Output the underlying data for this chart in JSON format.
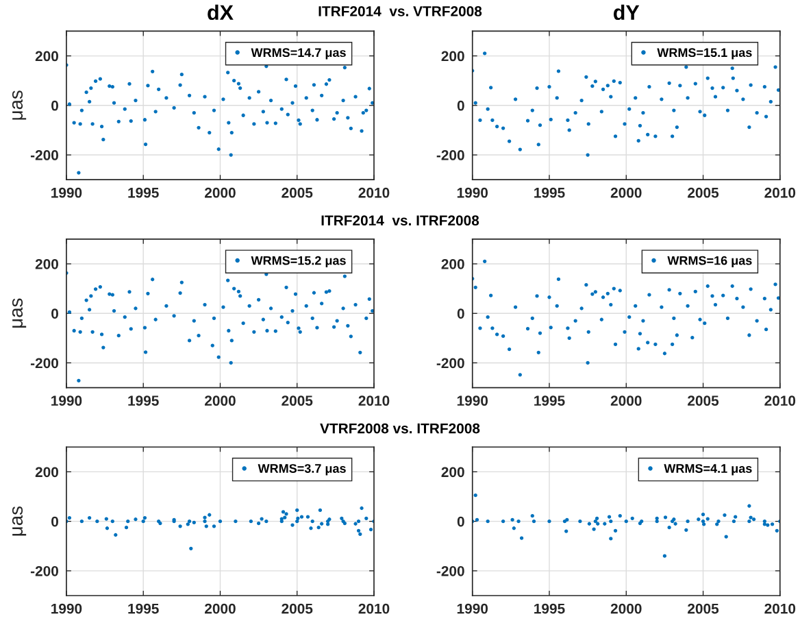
{
  "chart_data": [
    {
      "type": "scatter",
      "title": "dX",
      "ylabel": "μas",
      "annotations": [
        "ITRF2014  vs. VTRF2008"
      ],
      "xlim": [
        1990,
        2010
      ],
      "ylim": [
        -300,
        300
      ],
      "xticks": [
        1990,
        1995,
        2000,
        2005,
        2010
      ],
      "yticks": [
        -200,
        0,
        200
      ],
      "grid": true,
      "legend": "top right",
      "marker": "circle",
      "series": [
        {
          "name": "WRMS=14.7 μas",
          "color": "#0072bd",
          "x": [
            1990.0,
            1990.8,
            1992.2,
            1992.3,
            1992.4,
            1991.9,
            1991.3,
            1991.6,
            1990.5,
            1990.9,
            1991.7,
            1992.8,
            1993.0,
            1993.4,
            1994.1,
            1994.2,
            1995.1,
            1995.15,
            1995.3,
            1995.6,
            1996.0,
            1997.5,
            1997.4,
            1998.6,
            1999.3,
            1999.9,
            2000.5,
            2000.7,
            2000.75,
            2000.55,
            2000.9,
            2001.2,
            2001.3,
            2002.2,
            2002.5,
            2003.0,
            2003.05,
            2003.6,
            2004.3,
            2004.4,
            2004.9,
            2005.2,
            2005.1,
            2006.1,
            2006.3,
            2006.9,
            2007.1,
            2007.4,
            2008.1,
            2008.5,
            2009.2,
            2009.7,
            2009.3,
            2008.3,
            1990.2,
            1991.0,
            1991.5,
            1993.1,
            1993.8,
            1994.5,
            1995.8,
            1996.5,
            1997.0,
            1998.0,
            1998.3,
            1999.0,
            1999.6,
            2000.2,
            2001.5,
            2001.9,
            2002.8,
            2003.3,
            2004.0,
            2004.7,
            2005.6,
            2006.0,
            2006.6,
            2007.6,
            2008.0,
            2008.8,
            2009.5,
            2009.9
          ],
          "values": [
            163,
            -272,
            107,
            -85,
            -138,
            98,
            53,
            70,
            -70,
            -75,
            -75,
            78,
            75,
            -65,
            87,
            -63,
            -58,
            -157,
            80,
            137,
            65,
            125,
            82,
            -90,
            -110,
            -177,
            133,
            -200,
            -110,
            -70,
            100,
            88,
            70,
            -75,
            55,
            158,
            -70,
            -72,
            105,
            -37,
            78,
            -75,
            -60,
            83,
            -58,
            86,
            103,
            -55,
            153,
            -93,
            -103,
            68,
            -30,
            -50,
            5,
            -20,
            15,
            10,
            -15,
            20,
            -25,
            30,
            -10,
            40,
            -30,
            35,
            -20,
            25,
            -40,
            30,
            -25,
            20,
            -15,
            10,
            30,
            -20,
            40,
            -30,
            20,
            35,
            -20,
            10
          ]
        }
      ]
    },
    {
      "type": "scatter",
      "title": "dY",
      "xlim": [
        1990,
        2010
      ],
      "ylim": [
        -300,
        300
      ],
      "xticks": [
        1990,
        1995,
        2000,
        2005,
        2010
      ],
      "yticks": [
        -200,
        0,
        200
      ],
      "grid": true,
      "legend": "top right",
      "marker": "circle",
      "series": [
        {
          "name": "WRMS=15.1 μas",
          "color": "#0072bd",
          "x": [
            1990.0,
            1990.8,
            1991.2,
            1990.5,
            1991.3,
            1991.6,
            1992.0,
            1992.4,
            1993.1,
            1993.6,
            1994.2,
            1994.3,
            1994.4,
            1995.0,
            1995.1,
            1995.6,
            1996.3,
            1996.2,
            1997.4,
            1997.5,
            1997.55,
            1997.8,
            1998.0,
            1998.5,
            1998.8,
            1999.2,
            1999.3,
            1999.6,
            1999.9,
            2000.8,
            2000.9,
            2001.4,
            2001.5,
            2001.9,
            2002.8,
            2003.0,
            2003.3,
            2003.5,
            2003.9,
            2004.5,
            2005.3,
            2005.1,
            2005.6,
            2006.3,
            2006.9,
            2006.95,
            2007.2,
            2008.0,
            2008.1,
            2009.0,
            2009.1,
            2009.7,
            2009.9,
            1990.2,
            1991.0,
            1992.8,
            1993.9,
            1995.5,
            1996.7,
            1997.1,
            1998.4,
            1999.0,
            2000.2,
            2000.6,
            2001.1,
            2002.3,
            2003.1,
            2004.0,
            2004.8,
            2005.8,
            2006.6,
            2007.6,
            2008.5,
            2009.4
          ],
          "values": [
            140,
            210,
            72,
            -60,
            -60,
            -85,
            -92,
            -145,
            -178,
            -62,
            70,
            -158,
            -80,
            75,
            -57,
            138,
            -100,
            -60,
            115,
            -200,
            -75,
            78,
            97,
            65,
            80,
            98,
            -125,
            92,
            -75,
            -143,
            -82,
            -118,
            75,
            -125,
            90,
            -125,
            -88,
            80,
            155,
            88,
            110,
            -40,
            70,
            72,
            150,
            110,
            60,
            -88,
            82,
            75,
            -45,
            155,
            62,
            10,
            -15,
            25,
            -20,
            30,
            -30,
            20,
            -25,
            35,
            -15,
            30,
            -30,
            25,
            -20,
            30,
            -25,
            35,
            -20,
            25,
            -30,
            15
          ]
        }
      ]
    },
    {
      "type": "scatter",
      "ylabel": "μas",
      "annotations": [
        "ITRF2014  vs. ITRF2008"
      ],
      "xlim": [
        1990,
        2010
      ],
      "ylim": [
        -300,
        300
      ],
      "xticks": [
        1990,
        1995,
        2000,
        2005,
        2010
      ],
      "yticks": [
        -200,
        0,
        200
      ],
      "grid": true,
      "legend": "top right",
      "marker": "circle",
      "series": [
        {
          "name": "WRMS=15.2 μas",
          "color": "#0072bd",
          "x": [
            1990.0,
            1990.8,
            1992.2,
            1992.3,
            1992.4,
            1991.9,
            1991.3,
            1991.6,
            1990.5,
            1990.9,
            1991.7,
            1992.8,
            1993.0,
            1993.4,
            1994.1,
            1994.2,
            1995.1,
            1995.15,
            1995.3,
            1995.6,
            1997.5,
            1997.4,
            1998.0,
            1998.6,
            1999.5,
            1999.9,
            2000.5,
            2000.7,
            2000.75,
            2000.55,
            2000.9,
            2001.2,
            2001.3,
            2002.2,
            2002.5,
            2003.0,
            2003.05,
            2003.6,
            2004.3,
            2004.4,
            2004.9,
            2005.2,
            2005.1,
            2006.1,
            2006.3,
            2006.9,
            2007.1,
            2007.4,
            2008.1,
            2008.5,
            2009.1,
            2009.7,
            2008.3,
            1990.2,
            1991.0,
            1991.5,
            1993.1,
            1993.8,
            1994.5,
            1995.8,
            1996.5,
            1997.0,
            1998.3,
            1999.0,
            1999.6,
            2000.2,
            2001.5,
            2001.9,
            2002.8,
            2003.3,
            2004.0,
            2004.7,
            2005.6,
            2006.0,
            2006.6,
            2007.6,
            2008.0,
            2008.8,
            2009.5,
            2009.9
          ],
          "values": [
            163,
            -272,
            107,
            -85,
            -138,
            98,
            53,
            70,
            -70,
            -75,
            -75,
            78,
            75,
            -90,
            87,
            -63,
            -58,
            -157,
            80,
            137,
            125,
            82,
            -110,
            -90,
            -130,
            -177,
            133,
            -200,
            -110,
            -70,
            100,
            88,
            70,
            -75,
            55,
            158,
            -70,
            -72,
            105,
            -37,
            78,
            -75,
            -60,
            83,
            -58,
            86,
            90,
            -55,
            150,
            -93,
            -158,
            58,
            -50,
            5,
            -20,
            15,
            10,
            -15,
            20,
            -25,
            30,
            -10,
            -30,
            35,
            -20,
            25,
            -40,
            30,
            -25,
            20,
            -15,
            10,
            30,
            -20,
            40,
            -30,
            20,
            35,
            -20,
            10
          ]
        }
      ]
    },
    {
      "type": "scatter",
      "xlim": [
        1990,
        2010
      ],
      "ylim": [
        -300,
        300
      ],
      "xticks": [
        1990,
        1995,
        2000,
        2005,
        2010
      ],
      "yticks": [
        -200,
        0,
        200
      ],
      "grid": true,
      "legend": "top right",
      "marker": "circle",
      "series": [
        {
          "name": "WRMS=16 μas",
          "color": "#0072bd",
          "x": [
            1990.0,
            1990.2,
            1990.8,
            1991.2,
            1990.5,
            1991.3,
            1991.6,
            1992.0,
            1992.4,
            1993.1,
            1993.6,
            1994.2,
            1994.3,
            1994.4,
            1995.0,
            1995.1,
            1995.6,
            1996.3,
            1996.2,
            1997.4,
            1997.5,
            1997.55,
            1997.8,
            1998.0,
            1998.5,
            1998.8,
            1999.2,
            1999.3,
            1999.6,
            1999.9,
            2000.8,
            2000.9,
            2001.4,
            2001.5,
            2001.9,
            2002.5,
            2002.8,
            2003.0,
            2003.3,
            2003.5,
            2004.3,
            2004.5,
            2005.3,
            2005.1,
            2005.6,
            2006.3,
            2006.9,
            2007.2,
            2008.0,
            2008.1,
            2009.0,
            2009.1,
            2009.7,
            2009.9,
            1991.0,
            1992.8,
            1993.9,
            1995.5,
            1996.7,
            1997.1,
            1998.4,
            1999.0,
            2000.2,
            2000.6,
            2001.1,
            2002.3,
            2003.1,
            2004.0,
            2004.8,
            2005.8,
            2006.6,
            2007.6,
            2008.5,
            2009.4
          ],
          "values": [
            140,
            105,
            210,
            72,
            -60,
            -60,
            -85,
            -92,
            -145,
            -248,
            -62,
            70,
            -158,
            -80,
            65,
            -57,
            138,
            -100,
            -60,
            115,
            -200,
            -75,
            78,
            87,
            65,
            80,
            100,
            -125,
            92,
            -75,
            -143,
            -82,
            -118,
            75,
            -125,
            -162,
            95,
            -125,
            -88,
            80,
            -98,
            88,
            110,
            -40,
            70,
            72,
            110,
            60,
            -88,
            98,
            60,
            -65,
            117,
            62,
            -15,
            25,
            -20,
            30,
            -30,
            20,
            -25,
            35,
            -15,
            30,
            -30,
            25,
            -20,
            30,
            -25,
            35,
            -20,
            25,
            -30,
            15
          ]
        }
      ]
    },
    {
      "type": "scatter",
      "ylabel": "μas",
      "annotations": [
        "VTRF2008 vs. ITRF2008"
      ],
      "xlim": [
        1990,
        2010
      ],
      "ylim": [
        -300,
        300
      ],
      "xticks": [
        1990,
        1995,
        2000,
        2005,
        2010
      ],
      "yticks": [
        -200,
        0,
        200
      ],
      "grid": true,
      "legend": "top right",
      "marker": "circle",
      "series": [
        {
          "name": "WRMS=3.7 μas",
          "color": "#0072bd",
          "x": [
            1990.2,
            1991.5,
            1992.6,
            1992.65,
            1993.2,
            1993.9,
            1994.5,
            1995.1,
            1996.1,
            1997.0,
            1997.4,
            1997.9,
            1998.1,
            1998.3,
            1999.0,
            1999.1,
            1999.3,
            1999.6,
            2002.5,
            2002.7,
            2004.0,
            2004.1,
            2004.2,
            2004.3,
            2004.7,
            2005.0,
            2005.05,
            2005.3,
            2005.7,
            2005.9,
            2006.4,
            2006.5,
            2006.6,
            2007.0,
            2007.1,
            2007.9,
            2008.1,
            2008.8,
            2009.0,
            2009.1,
            2009.2,
            2009.5,
            2009.8,
            1990.0,
            1991.0,
            1992.0,
            1993.0,
            1994.0,
            1995.0,
            1996.0,
            1997.0,
            1998.0,
            1999.0,
            2000.0,
            2001.0,
            2002.0,
            2003.0,
            2004.0,
            2005.0,
            2006.0,
            2007.0,
            2008.0,
            2009.0,
            2010.0
          ],
          "values": [
            14,
            14,
            10,
            -28,
            -55,
            -25,
            8,
            14,
            -8,
            6,
            -20,
            -12,
            -110,
            -5,
            15,
            -20,
            26,
            -20,
            -8,
            10,
            10,
            38,
            15,
            30,
            -15,
            45,
            12,
            18,
            18,
            -28,
            -25,
            45,
            -10,
            -12,
            8,
            12,
            -8,
            -10,
            -38,
            -52,
            53,
            12,
            -33,
            0,
            0,
            0,
            0,
            0,
            0,
            0,
            0,
            0,
            0,
            0,
            0,
            0,
            0,
            0,
            0,
            0,
            0,
            0,
            0,
            0
          ]
        }
      ]
    },
    {
      "type": "scatter",
      "xlim": [
        1990,
        2010
      ],
      "ylim": [
        -300,
        300
      ],
      "xticks": [
        1990,
        1995,
        2000,
        2005,
        2010
      ],
      "yticks": [
        -200,
        0,
        200
      ],
      "grid": true,
      "legend": "top right",
      "marker": "circle",
      "series": [
        {
          "name": "WRMS=4.1 μas",
          "color": "#0072bd",
          "x": [
            1990.2,
            1990.3,
            1992.6,
            1992.7,
            1993.2,
            1993.9,
            1996.1,
            1996.15,
            1997.6,
            1997.9,
            1998.1,
            1998.15,
            1998.6,
            1998.9,
            1999.0,
            1999.3,
            1999.6,
            2000.4,
            2000.9,
            2002.0,
            2002.5,
            2002.55,
            2002.8,
            2003.1,
            2003.2,
            2003.9,
            2004.7,
            2005.0,
            2005.05,
            2005.3,
            2005.9,
            2006.4,
            2006.5,
            2007.1,
            2008.0,
            2008.1,
            2008.3,
            2009.0,
            2009.2,
            2009.5,
            2009.8,
            1990.0,
            1991.0,
            1992.0,
            1993.0,
            1994.0,
            1995.0,
            1996.0,
            1997.0,
            1998.0,
            1999.0,
            2000.0,
            2001.0,
            2002.0,
            2003.0,
            2004.0,
            2005.0,
            2006.0,
            2007.0,
            2008.0,
            2009.0,
            2010.0
          ],
          "values": [
            105,
            6,
            6,
            -28,
            -68,
            22,
            -40,
            6,
            -10,
            -32,
            12,
            -10,
            -10,
            18,
            -70,
            -38,
            22,
            12,
            -8,
            12,
            -140,
            16,
            -25,
            8,
            -10,
            -35,
            8,
            28,
            -12,
            10,
            -12,
            25,
            -62,
            18,
            62,
            15,
            8,
            -12,
            -15,
            -12,
            -38,
            0,
            0,
            0,
            0,
            0,
            0,
            0,
            0,
            0,
            0,
            0,
            0,
            0,
            0,
            0,
            0,
            0,
            0,
            0,
            0,
            0
          ]
        }
      ]
    }
  ]
}
